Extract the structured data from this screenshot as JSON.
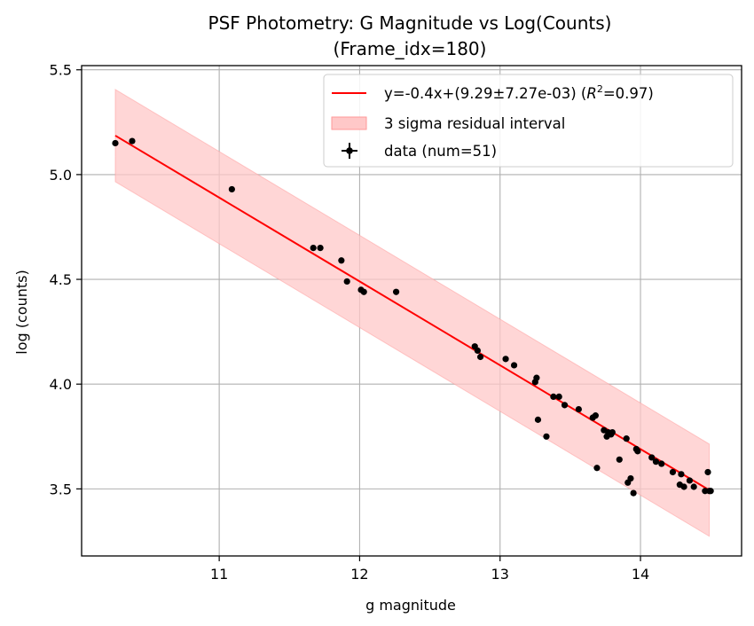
{
  "chart_data": {
    "type": "scatter",
    "title": "PSF Photometry: G Magnitude vs Log(Counts)",
    "subtitle": "(Frame_idx=180)",
    "xlabel": "g magnitude",
    "ylabel": "log (counts)",
    "xlim": [
      10.02,
      14.72
    ],
    "ylim": [
      3.18,
      5.52
    ],
    "x_ticks": [
      11,
      12,
      13,
      14
    ],
    "y_ticks": [
      3.5,
      4.0,
      4.5,
      5.0,
      5.5
    ],
    "x_tick_labels": [
      "11",
      "12",
      "13",
      "14"
    ],
    "y_tick_labels": [
      "3.5",
      "4.0",
      "4.5",
      "5.0",
      "5.5"
    ],
    "grid": true,
    "legend_position": "top-right",
    "fit": {
      "slope": -0.4,
      "intercept": 9.29,
      "x_range": [
        10.26,
        14.49
      ],
      "sigma3_halfwidth": 0.22,
      "color": "#ff0000",
      "band_color": "#ffc8c8"
    },
    "legend": [
      {
        "kind": "line",
        "label": "y=-0.4x+(9.29±7.27e-03) (",
        "math": "R",
        "sup": "2",
        "tail": "=0.97)"
      },
      {
        "kind": "band",
        "label": "3 sigma residual interval"
      },
      {
        "kind": "marker",
        "label": "data (num=51)"
      }
    ],
    "series": [
      {
        "color": "#000000",
        "points": [
          [
            10.26,
            5.15
          ],
          [
            10.38,
            5.16
          ],
          [
            11.09,
            4.93
          ],
          [
            11.67,
            4.65
          ],
          [
            11.72,
            4.65
          ],
          [
            11.87,
            4.59
          ],
          [
            11.91,
            4.49
          ],
          [
            12.01,
            4.45
          ],
          [
            12.03,
            4.44
          ],
          [
            12.26,
            4.44
          ],
          [
            12.82,
            4.18
          ],
          [
            12.84,
            4.16
          ],
          [
            12.86,
            4.13
          ],
          [
            13.04,
            4.12
          ],
          [
            13.1,
            4.09
          ],
          [
            13.25,
            4.01
          ],
          [
            13.26,
            4.03
          ],
          [
            13.27,
            3.83
          ],
          [
            13.33,
            3.75
          ],
          [
            13.38,
            3.94
          ],
          [
            13.42,
            3.94
          ],
          [
            13.46,
            3.9
          ],
          [
            13.56,
            3.88
          ],
          [
            13.66,
            3.84
          ],
          [
            13.68,
            3.85
          ],
          [
            13.69,
            3.6
          ],
          [
            13.74,
            3.78
          ],
          [
            13.76,
            3.75
          ],
          [
            13.77,
            3.77
          ],
          [
            13.79,
            3.76
          ],
          [
            13.8,
            3.77
          ],
          [
            13.85,
            3.64
          ],
          [
            13.9,
            3.74
          ],
          [
            13.91,
            3.53
          ],
          [
            13.93,
            3.55
          ],
          [
            13.95,
            3.48
          ],
          [
            13.97,
            3.69
          ],
          [
            13.98,
            3.68
          ],
          [
            14.08,
            3.65
          ],
          [
            14.11,
            3.63
          ],
          [
            14.15,
            3.62
          ],
          [
            14.23,
            3.58
          ],
          [
            14.28,
            3.52
          ],
          [
            14.29,
            3.57
          ],
          [
            14.31,
            3.51
          ],
          [
            14.35,
            3.54
          ],
          [
            14.38,
            3.51
          ],
          [
            14.46,
            3.49
          ],
          [
            14.48,
            3.58
          ],
          [
            14.49,
            3.49
          ],
          [
            14.5,
            3.49
          ]
        ]
      }
    ]
  }
}
